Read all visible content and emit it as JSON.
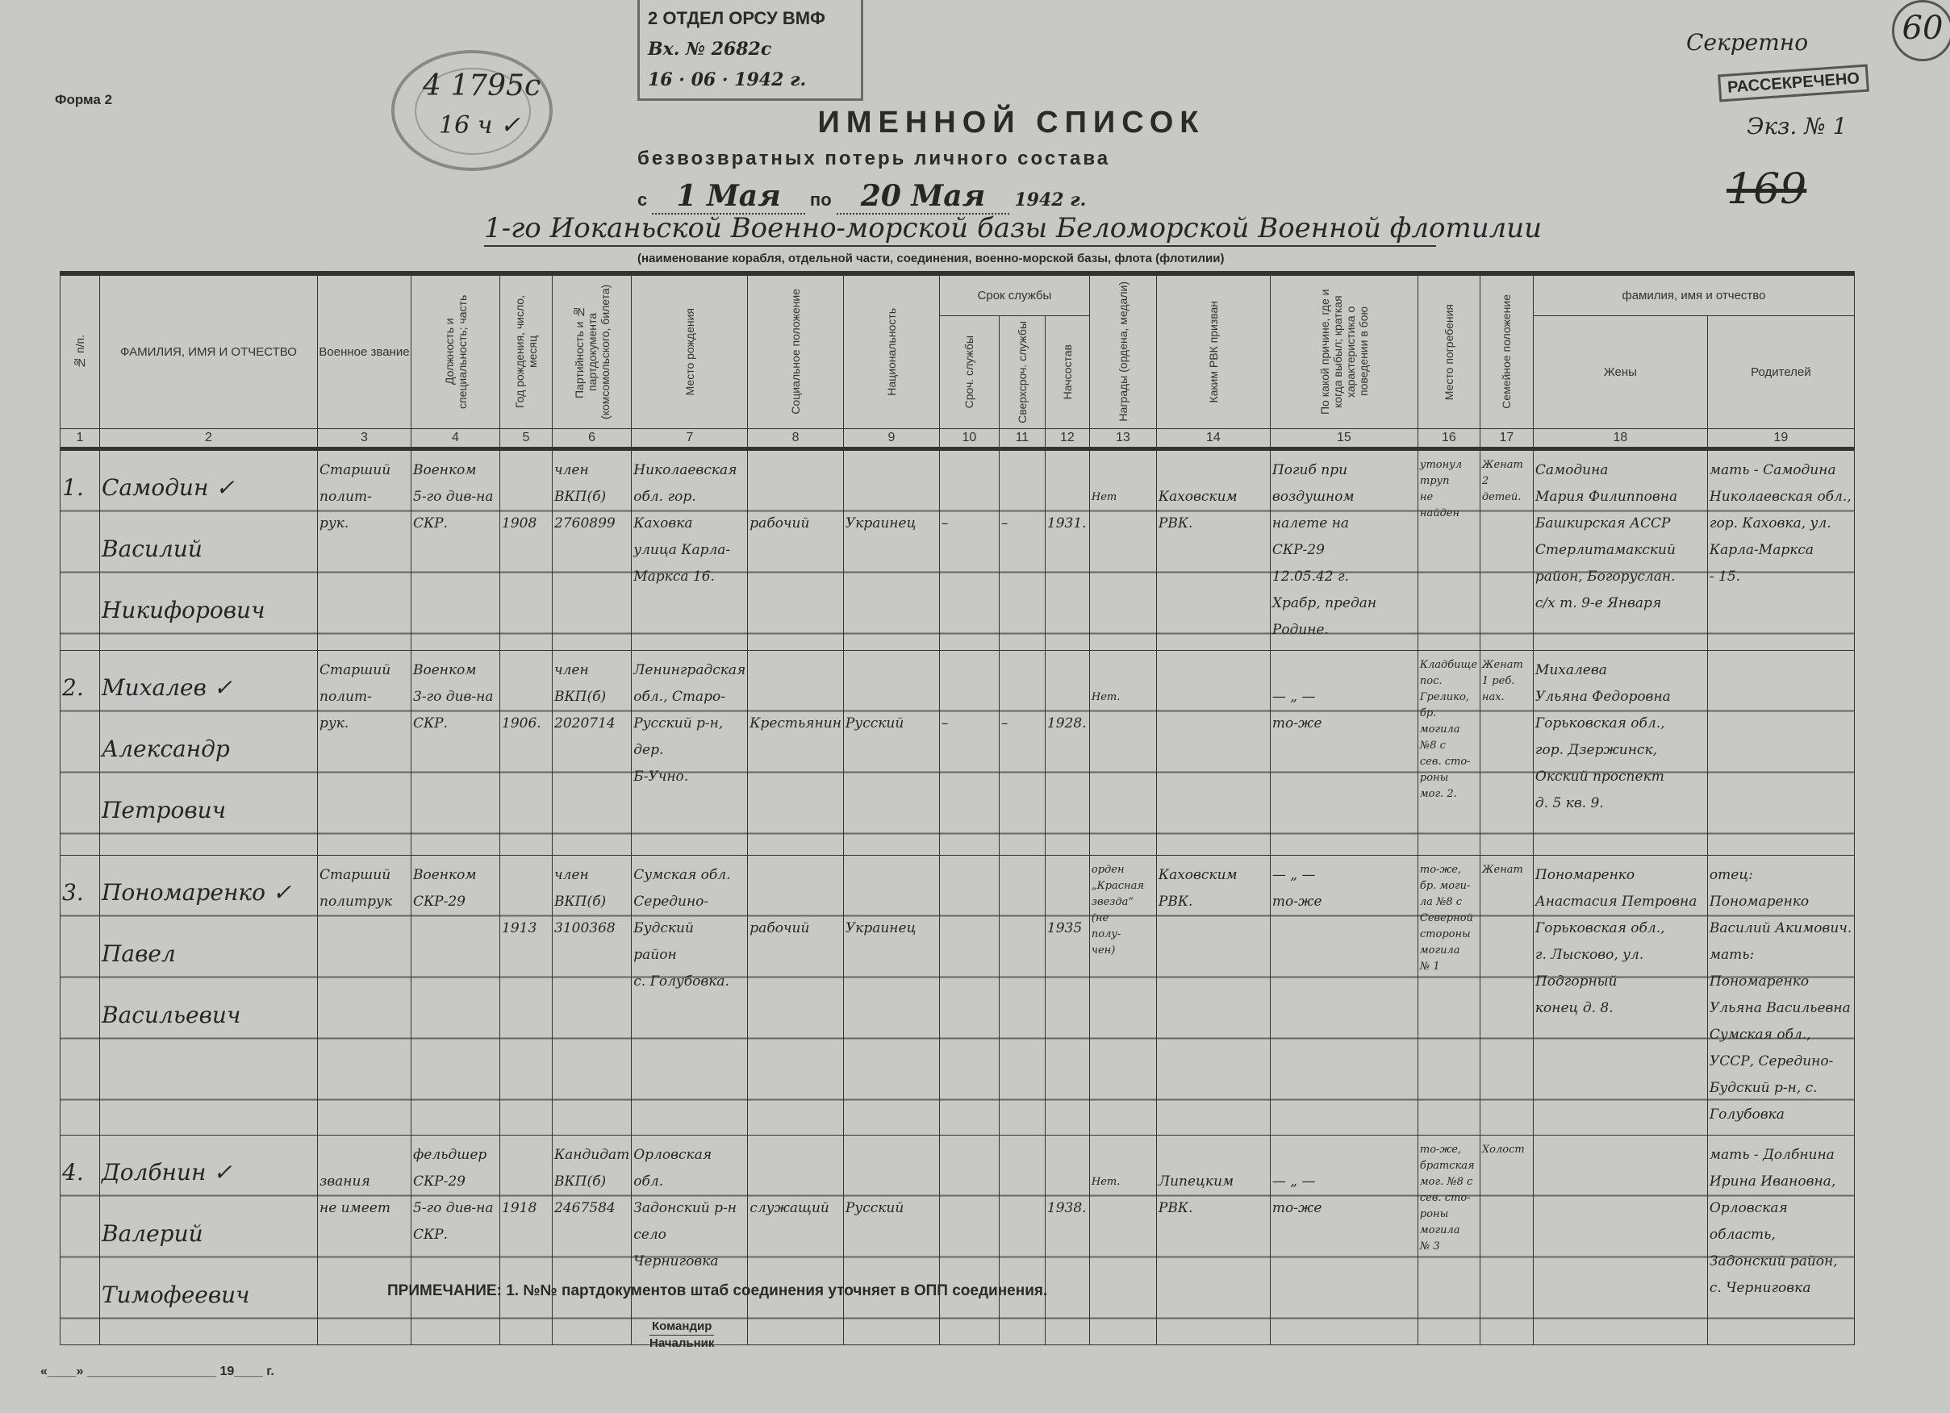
{
  "form_label": "Форма 2",
  "stamps": {
    "oval": {
      "line1": "4 1795с",
      "line2": "16 ч ✓"
    },
    "box": {
      "line1": "2 ОТДЕЛ ОРСУ ВМФ",
      "line2": "Вх. № 2682с",
      "line3": "16 · 06 · 1942 г."
    },
    "secret": "Секретно",
    "declassified": "РАССЕКРЕЧЕНО",
    "copy": "Экз. № 1",
    "sheet_number": "169",
    "circled": "60"
  },
  "title": "ИМЕННОЙ СПИСОК",
  "subtitle": "безвозвратных потерь личного состава",
  "period": {
    "from_prefix": "с",
    "from": "1 Мая",
    "to_prefix": "по",
    "to": "20 Мая",
    "year": "1942 г."
  },
  "unit": "1-го Иоканьской Военно-морской базы Беломорской Военной флотилии",
  "unit_caption": "(наименование корабля, отдельной части, соединения, военно-морской базы, флота (флотилии)",
  "columns": {
    "c1": "№ п/п.",
    "c2": "ФАМИЛИЯ, ИМЯ И ОТЧЕСТВО",
    "c3": "Военное звание",
    "c4": "Должность и специальность; часть",
    "c5": "Год рождения, число, месяц",
    "c6": "Партийность и № партдокумента (комсомольского, билета)",
    "c7": "Место рождения",
    "c8": "Социальное положение",
    "c9": "Национальность",
    "service_group": "Срок службы",
    "c10": "Сроч. службы",
    "c11": "Сверхсроч. службы",
    "c12": "Начсостав",
    "c13": "Награды (ордена, медали)",
    "c14": "Каким РВК призван",
    "c15": "По какой причине, где и когда выбыл; краткая характеристика о поведении в бою",
    "c16": "Место погребения",
    "c17": "Семейное положение",
    "family_group": "фамилия, имя и отчество",
    "c18": "Жены",
    "c19": "Родителей",
    "numbers": [
      "1",
      "2",
      "3",
      "4",
      "5",
      "6",
      "7",
      "8",
      "9",
      "10",
      "11",
      "12",
      "13",
      "14",
      "15",
      "16",
      "17",
      "18",
      "19"
    ]
  },
  "rows": [
    [
      "1.",
      "Самодин ✓\nВасилий\nНикифорович",
      "Старший\nполит-\nрук.",
      "Военком\n5-го див-на\nСКР.",
      "\n\n1908",
      "член\nВКП(б)\n2760899",
      "Николаевская\nобл. гор. Каховка\nулица Карла-\nМаркса 16.",
      "\n\nрабочий",
      "\n\nУкраинец",
      "\n\n–",
      "\n\n–",
      "\n\n1931.",
      "\n\nНет",
      "\nКаховским\nРВК.",
      "Погиб при\nвоздушном\nналете на\nСКР-29\n12.05.42 г.\nХрабр, предан\nРодине.",
      "утонул\nтруп\nне\nнайден",
      "Женат\n2\nдетей.",
      "Самодина\nМария Филипповна\nБашкирская АССР\nСтерлитамакский\nрайон, Богоруслан.\nс/х т. 9-е Января",
      "мать - Самодина\nНиколаевская обл.,\nгор. Каховка, ул.\nКарла-Маркса\n- 15."
    ],
    [
      "2.",
      "Михалев ✓\nАлександр\nПетрович",
      "Старший\nполит-\nрук.",
      "Военком\n3-го див-на\nСКР.",
      "\n\n1906.",
      "член\nВКП(б)\n2020714",
      "Ленинградская\nобл., Старо-\nРусский р-н,\nдер.\nБ-Учно.",
      "\n\nКрестьянин",
      "\n\nРусский",
      "\n\n–",
      "\n\n–",
      "\n\n1928.",
      "\n\nНет.",
      "",
      "\n— „ —\nто-же",
      "Кладбище\nпос. Грелико,\nбр. могила\n№8 с\nсев. сто-\nроны\nмог. 2.",
      "Женат\n1 реб.\nнах.",
      "Михалева\nУльяна Федоровна\nГорьковская обл.,\nгор. Дзержинск,\nОкский проспект\nд. 5 кв. 9.",
      ""
    ],
    [
      "3.",
      "Пономаренко ✓\nПавел\nВасильевич",
      "Старший\nполитрук",
      "Военком\nСКР-29",
      "\n\n1913",
      "член\nВКП(б)\n3100368",
      "Сумская обл.\nСередино-\nБудский\nрайон\nс. Голубовка.",
      "\n\nрабочий",
      "\n\nУкраинец",
      "",
      "",
      "\n\n1935",
      "орден\n„Красная\nзвезда“\n(не\nполу-\nчен)",
      "Каховским\nРВК.",
      "— „ —\nто-же",
      "то-же,\nбр. моги-\nла №8 с\nСеверной\nстороны\nмогила\n№ 1",
      "Женат",
      "Пономаренко\nАнастасия Петровна\nГорьковская обл.,\nг. Лысково, ул.\nПодгорный\nконец д. 8.",
      "отец: Пономаренко\nВасилий Акимович.\nмать: Пономаренко\nУльяна Васильевна\nСумская обл., УССР, Середино-\nБудский р-н, с. Голубовка"
    ],
    [
      "4.",
      "Долбнин ✓\nВалерий\nТимофеевич",
      "\nзвания\nне имеет",
      "фельдшер\nСКР-29\n5-го див-на\nСКР.",
      "\n\n1918",
      "Кандидат\nВКП(б)\n2467584",
      "Орловская обл.\nЗадонский р-н\nсело\nЧерниговка",
      "\n\nслужащий",
      "\n\nРусский",
      "",
      "",
      "\n\n1938.",
      "\n\nНет.",
      "\nЛипецким\nРВК.",
      "\n— „ —\nто-же",
      "то-же,\nбратская\nмог. №8 с\nсев. сто-\nроны\nмогила\n№ 3",
      "Холост",
      "",
      "мать - Долбнина\nИрина Ивановна,\nОрловская область,\nЗадонский район,\nс. Черниговка"
    ]
  ],
  "footer": {
    "note": "ПРИМЕЧАНИЕ: 1. №№ партдокументов штаб соединения уточняет в ОПП соединения.",
    "commander": "Командир",
    "chief": "Начальник",
    "date_line": "«____» __________________ 19____ г."
  }
}
